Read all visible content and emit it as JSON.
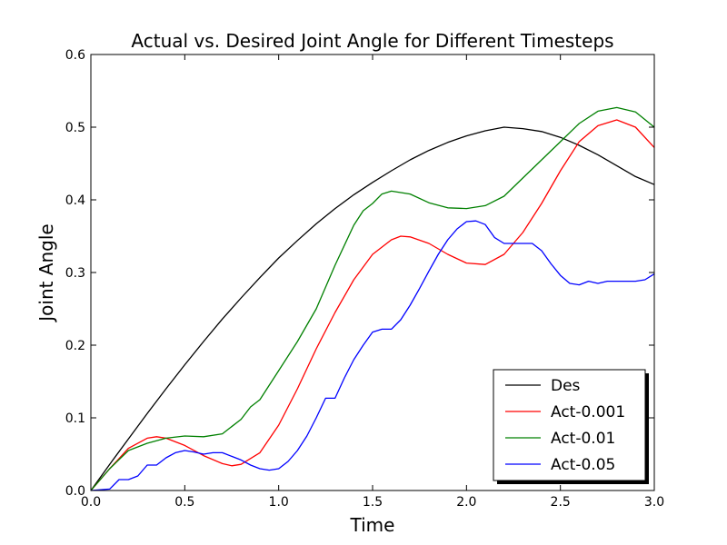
{
  "chart_data": {
    "type": "line",
    "title": "Actual vs. Desired Joint Angle for Different Timesteps",
    "xlabel": "Time",
    "ylabel": "Joint Angle",
    "xlim": [
      0,
      3
    ],
    "ylim": [
      0,
      0.6
    ],
    "xticks": [
      "0.0",
      "0.5",
      "1.0",
      "1.5",
      "2.0",
      "2.5",
      "3.0"
    ],
    "yticks": [
      "0.0",
      "0.1",
      "0.2",
      "0.3",
      "0.4",
      "0.5",
      "0.6"
    ],
    "grid": false,
    "legend": "lower-right",
    "series": [
      {
        "name": "Des",
        "color": "#000000",
        "x": [
          0,
          0.1,
          0.2,
          0.3,
          0.4,
          0.5,
          0.6,
          0.7,
          0.8,
          0.9,
          1.0,
          1.1,
          1.2,
          1.3,
          1.4,
          1.5,
          1.6,
          1.7,
          1.8,
          1.9,
          2.0,
          2.1,
          2.2,
          2.3,
          2.4,
          2.5,
          2.6,
          2.7,
          2.8,
          2.9,
          3.0
        ],
        "y": [
          0.0,
          0.036,
          0.071,
          0.106,
          0.14,
          0.173,
          0.205,
          0.236,
          0.265,
          0.293,
          0.32,
          0.344,
          0.367,
          0.388,
          0.407,
          0.424,
          0.44,
          0.455,
          0.468,
          0.479,
          0.488,
          0.495,
          0.5,
          0.498,
          0.494,
          0.486,
          0.475,
          0.462,
          0.447,
          0.432,
          0.421
        ]
      },
      {
        "name": "Act-0.001",
        "color": "#ff0000",
        "x": [
          0,
          0.1,
          0.2,
          0.3,
          0.35,
          0.4,
          0.5,
          0.6,
          0.7,
          0.75,
          0.8,
          0.9,
          1.0,
          1.1,
          1.2,
          1.3,
          1.4,
          1.5,
          1.6,
          1.65,
          1.7,
          1.8,
          1.9,
          2.0,
          2.1,
          2.2,
          2.3,
          2.4,
          2.5,
          2.6,
          2.7,
          2.8,
          2.9,
          3.0
        ],
        "y": [
          0.0,
          0.03,
          0.058,
          0.072,
          0.074,
          0.072,
          0.062,
          0.048,
          0.037,
          0.034,
          0.036,
          0.052,
          0.09,
          0.14,
          0.195,
          0.245,
          0.29,
          0.325,
          0.345,
          0.35,
          0.349,
          0.34,
          0.325,
          0.313,
          0.311,
          0.325,
          0.355,
          0.395,
          0.44,
          0.48,
          0.502,
          0.51,
          0.5,
          0.472
        ]
      },
      {
        "name": "Act-0.01",
        "color": "#008000",
        "x": [
          0,
          0.1,
          0.2,
          0.3,
          0.4,
          0.5,
          0.6,
          0.7,
          0.8,
          0.85,
          0.9,
          1.0,
          1.1,
          1.2,
          1.3,
          1.4,
          1.45,
          1.5,
          1.55,
          1.6,
          1.7,
          1.8,
          1.9,
          2.0,
          2.1,
          2.2,
          2.3,
          2.4,
          2.5,
          2.6,
          2.7,
          2.8,
          2.9,
          3.0
        ],
        "y": [
          0.0,
          0.03,
          0.055,
          0.065,
          0.072,
          0.075,
          0.074,
          0.078,
          0.098,
          0.115,
          0.125,
          0.165,
          0.205,
          0.25,
          0.31,
          0.365,
          0.385,
          0.395,
          0.408,
          0.412,
          0.408,
          0.396,
          0.389,
          0.388,
          0.392,
          0.405,
          0.43,
          0.455,
          0.48,
          0.505,
          0.522,
          0.527,
          0.521,
          0.5
        ]
      },
      {
        "name": "Act-0.05",
        "color": "#0000ff",
        "x": [
          0,
          0.1,
          0.15,
          0.2,
          0.25,
          0.3,
          0.35,
          0.4,
          0.45,
          0.5,
          0.55,
          0.6,
          0.65,
          0.7,
          0.75,
          0.8,
          0.85,
          0.9,
          0.95,
          1.0,
          1.05,
          1.1,
          1.15,
          1.2,
          1.25,
          1.3,
          1.35,
          1.4,
          1.45,
          1.5,
          1.55,
          1.6,
          1.65,
          1.7,
          1.75,
          1.8,
          1.85,
          1.9,
          1.95,
          2.0,
          2.05,
          2.1,
          2.15,
          2.2,
          2.25,
          2.3,
          2.35,
          2.4,
          2.45,
          2.5,
          2.55,
          2.6,
          2.65,
          2.7,
          2.75,
          2.8,
          2.85,
          2.9,
          2.95,
          3.0
        ],
        "y": [
          0.0,
          0.002,
          0.015,
          0.015,
          0.02,
          0.035,
          0.035,
          0.045,
          0.052,
          0.055,
          0.053,
          0.05,
          0.052,
          0.052,
          0.047,
          0.042,
          0.035,
          0.03,
          0.028,
          0.03,
          0.04,
          0.055,
          0.075,
          0.1,
          0.127,
          0.127,
          0.155,
          0.18,
          0.2,
          0.218,
          0.222,
          0.222,
          0.235,
          0.255,
          0.278,
          0.302,
          0.325,
          0.345,
          0.36,
          0.37,
          0.371,
          0.366,
          0.348,
          0.34,
          0.34,
          0.34,
          0.34,
          0.33,
          0.312,
          0.296,
          0.285,
          0.283,
          0.288,
          0.285,
          0.288,
          0.288,
          0.288,
          0.288,
          0.29,
          0.298
        ]
      }
    ]
  }
}
